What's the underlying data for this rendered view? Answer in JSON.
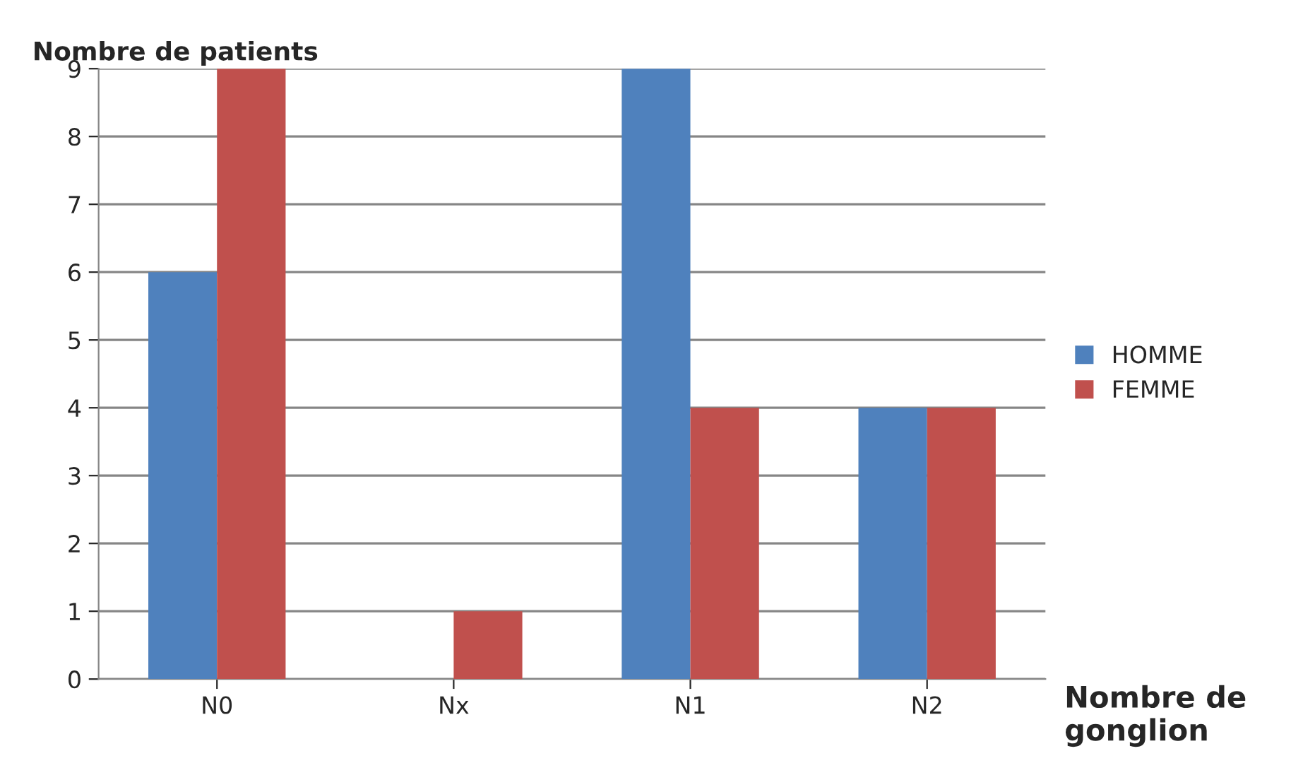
{
  "chart_data": {
    "type": "bar",
    "xlabel": "Nombre de gonglion",
    "ylabel": "Nombre de patients",
    "categories": [
      "N0",
      "Nx",
      "N1",
      "N2"
    ],
    "series": [
      {
        "name": "HOMME",
        "color": "#4f81bd",
        "values": [
          6,
          0,
          9,
          4
        ]
      },
      {
        "name": "FEMME",
        "color": "#c0504d",
        "values": [
          9,
          1,
          4,
          4
        ]
      }
    ],
    "ylim": [
      0,
      9
    ],
    "yticks": [
      0,
      1,
      2,
      3,
      4,
      5,
      6,
      7,
      8,
      9
    ],
    "grid": "y",
    "legend": "right"
  }
}
